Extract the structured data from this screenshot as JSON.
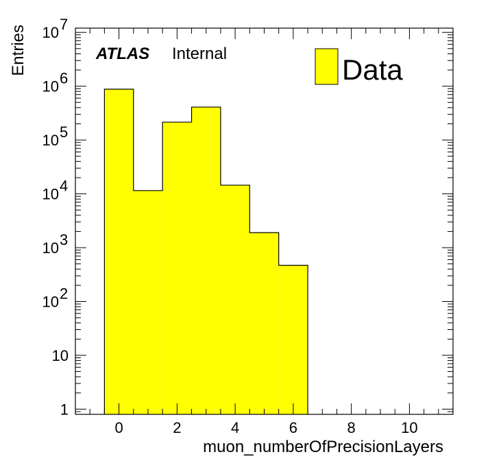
{
  "chart_data": {
    "type": "bar",
    "histogram": true,
    "xlabel": "muon_numberOfPrecisionLayers",
    "ylabel": "Entries",
    "xlim": [
      -1.5,
      11.5
    ],
    "ylim": [
      0.8,
      12000000
    ],
    "log_y": true,
    "bin_edges": [
      -0.5,
      0.5,
      1.5,
      2.5,
      3.5,
      4.5,
      5.5,
      6.5
    ],
    "series": [
      {
        "name": "Data",
        "color": "#ffff00",
        "values": [
          880000,
          11500,
          215000,
          410000,
          14500,
          1900,
          470
        ]
      }
    ],
    "x_ticks": [
      {
        "value": 0,
        "label": "0"
      },
      {
        "value": 2,
        "label": "2"
      },
      {
        "value": 4,
        "label": "4"
      },
      {
        "value": 6,
        "label": "6"
      },
      {
        "value": 8,
        "label": "8"
      },
      {
        "value": 10,
        "label": "10"
      }
    ],
    "y_ticks": [
      {
        "value": 1,
        "base": "1",
        "exp": ""
      },
      {
        "value": 10,
        "base": "10",
        "exp": ""
      },
      {
        "value": 100,
        "base": "10",
        "exp": "2"
      },
      {
        "value": 1000,
        "base": "10",
        "exp": "3"
      },
      {
        "value": 10000,
        "base": "10",
        "exp": "4"
      },
      {
        "value": 100000,
        "base": "10",
        "exp": "5"
      },
      {
        "value": 1000000,
        "base": "10",
        "exp": "6"
      },
      {
        "value": 10000000,
        "base": "10",
        "exp": "7"
      }
    ],
    "atlas_label": "ATLAS",
    "atlas_status": "Internal",
    "legend": {
      "position": "top-right",
      "entries": [
        "Data"
      ]
    }
  }
}
